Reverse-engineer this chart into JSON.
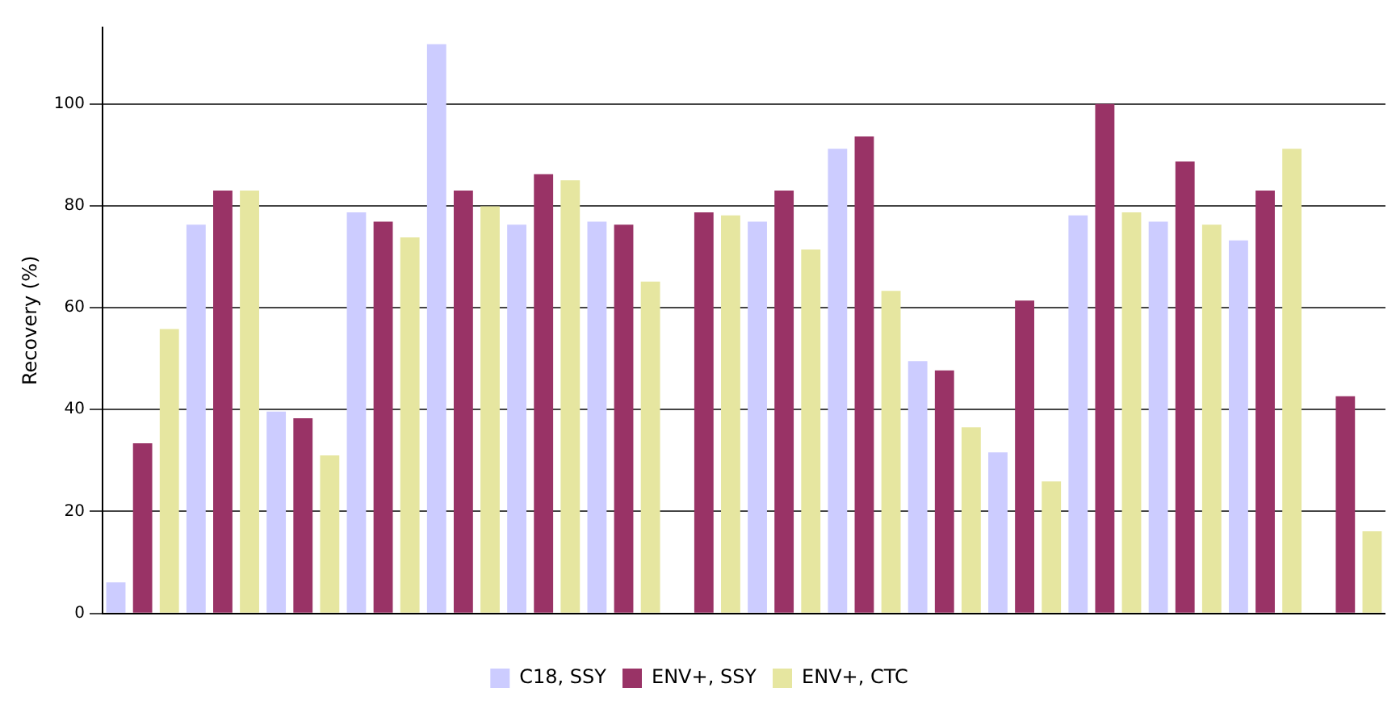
{
  "chart_data": {
    "type": "bar",
    "ylabel": "Recovery (%)",
    "categories": [
      null,
      null,
      null,
      null,
      null,
      null,
      null,
      null,
      null,
      null,
      null,
      null,
      null,
      null,
      null,
      null
    ],
    "series": [
      {
        "name": "C18, SSY",
        "color": "#ccccff",
        "values": [
          6.1,
          76.3,
          39.6,
          78.7,
          111.7,
          76.3,
          76.9,
          null,
          76.9,
          91.2,
          49.5,
          31.6,
          78.1,
          76.9,
          73.2,
          null
        ]
      },
      {
        "name": "ENV+, SSY",
        "color": "#993366",
        "values": [
          33.4,
          83,
          38.3,
          76.9,
          83,
          86.2,
          76.3,
          78.7,
          83,
          93.6,
          47.7,
          61.4,
          100,
          88.7,
          83,
          42.6
        ]
      },
      {
        "name": "ENV+, CTC",
        "color": "#e6e6a0",
        "values": [
          55.8,
          83,
          31,
          73.8,
          79.9,
          85,
          65.1,
          78.1,
          71.4,
          63.3,
          36.5,
          25.9,
          78.7,
          76.3,
          91.2,
          16.1
        ]
      }
    ],
    "ylim": [
      0,
      115
    ],
    "yticks": [
      0,
      20,
      40,
      60,
      80,
      100
    ],
    "grid": "y",
    "legend": "bottom"
  }
}
